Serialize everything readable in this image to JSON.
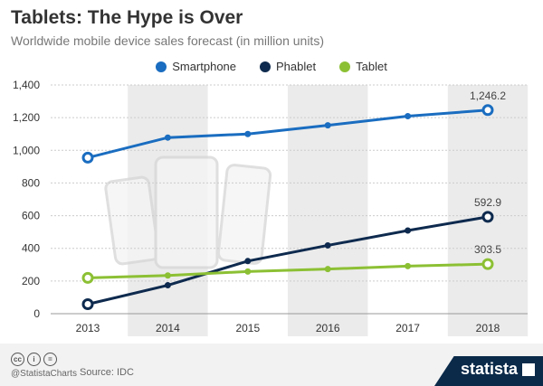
{
  "chart_data": {
    "type": "line",
    "title": "Tablets: The Hype is Over",
    "subtitle": "Worldwide mobile device sales forecast (in million units)",
    "categories": [
      "2013",
      "2014",
      "2015",
      "2016",
      "2017",
      "2018"
    ],
    "ylim": [
      0,
      1400
    ],
    "yticks": [
      "0",
      "200",
      "400",
      "600",
      "800",
      "1,000",
      "1,200",
      "1,400"
    ],
    "grid": true,
    "legend_placement": "top",
    "series": [
      {
        "name": "Smartphone",
        "color": "#1a6dc0",
        "values": [
          955,
          1078,
          1100,
          1153,
          1209,
          1246.2
        ],
        "end_label": "1,246.2"
      },
      {
        "name": "Phablet",
        "color": "#0e2a4e",
        "values": [
          58,
          174,
          322,
          418,
          509,
          592.9
        ],
        "end_label": "592.9"
      },
      {
        "name": "Tablet",
        "color": "#8cc034",
        "values": [
          219,
          234,
          258,
          273,
          291,
          303.5
        ],
        "end_label": "303.5"
      }
    ]
  },
  "footer": {
    "handle": "@StatistaCharts",
    "source": "Source: IDC",
    "brand": "statista",
    "cc_icons": [
      "cc",
      "by",
      "nd"
    ]
  }
}
